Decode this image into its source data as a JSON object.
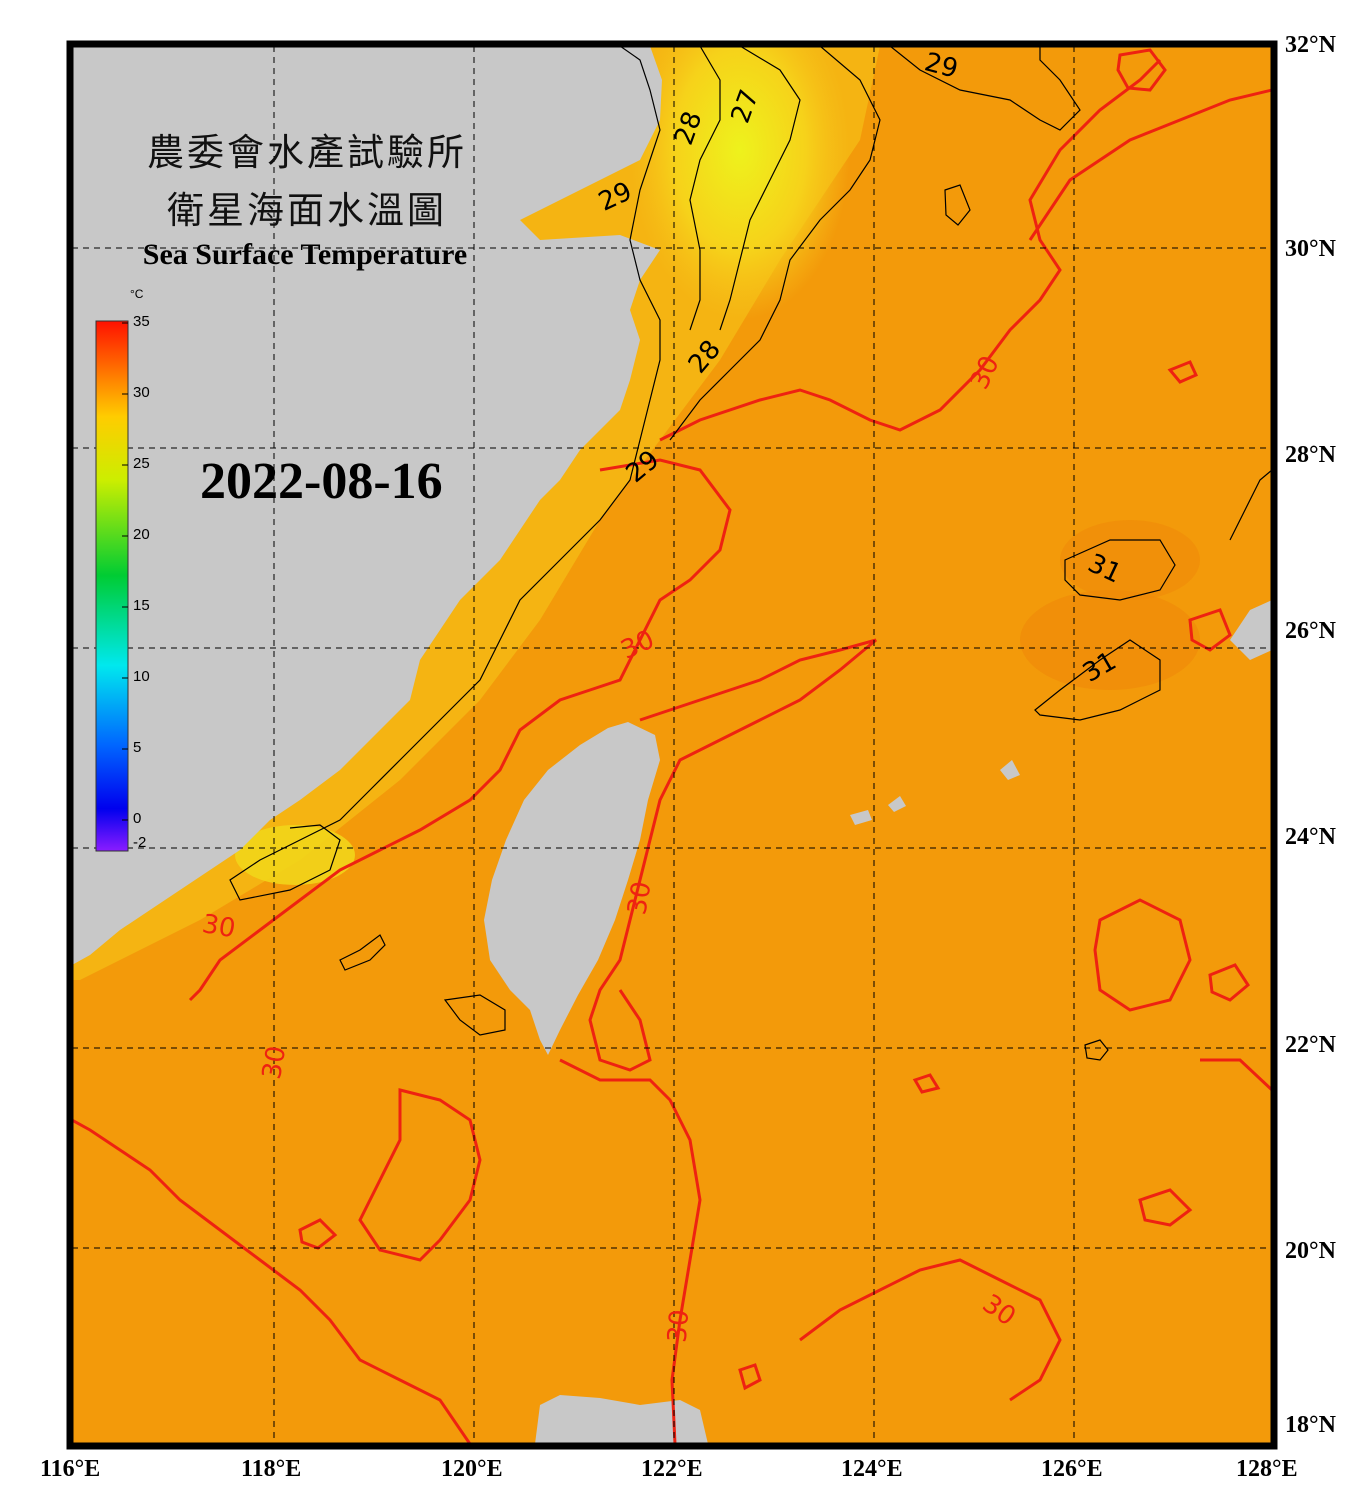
{
  "map": {
    "title_zh_line1": "農委會水產試驗所",
    "title_zh_line2": "衛星海面水溫圖",
    "title_en": "Sea Surface Temperature",
    "date": "2022-08-16",
    "colorbar": {
      "unit": "°C",
      "ticks": [
        "35",
        "30",
        "25",
        "20",
        "15",
        "10",
        "5",
        "0",
        "-2"
      ],
      "range": [
        -2,
        35
      ]
    },
    "lat_labels": [
      "32°N",
      "30°N",
      "28°N",
      "26°N",
      "24°N",
      "22°N",
      "20°N",
      "18°N"
    ],
    "lon_labels": [
      "116°E",
      "118°E",
      "120°E",
      "122°E",
      "124°E",
      "126°E",
      "128°E"
    ],
    "isotherm_labels": {
      "t27": "27",
      "t28a": "28",
      "t28b": "28",
      "t29a": "29",
      "t29b": "29",
      "t29c": "29",
      "t30a": "30",
      "t30b": "30",
      "t30c": "30",
      "t30d": "30",
      "t30e": "30",
      "t30f": "30",
      "t30g": "30",
      "t31a": "31",
      "t31b": "31"
    },
    "colors": {
      "sea_warm": "#f39a0a",
      "sea_cool": "#f5c21a",
      "sea_cold": "#e8ee1c",
      "land": "#c8c8c8",
      "isotherm_30": "#ee2211",
      "isotherm_other": "#000000"
    }
  }
}
